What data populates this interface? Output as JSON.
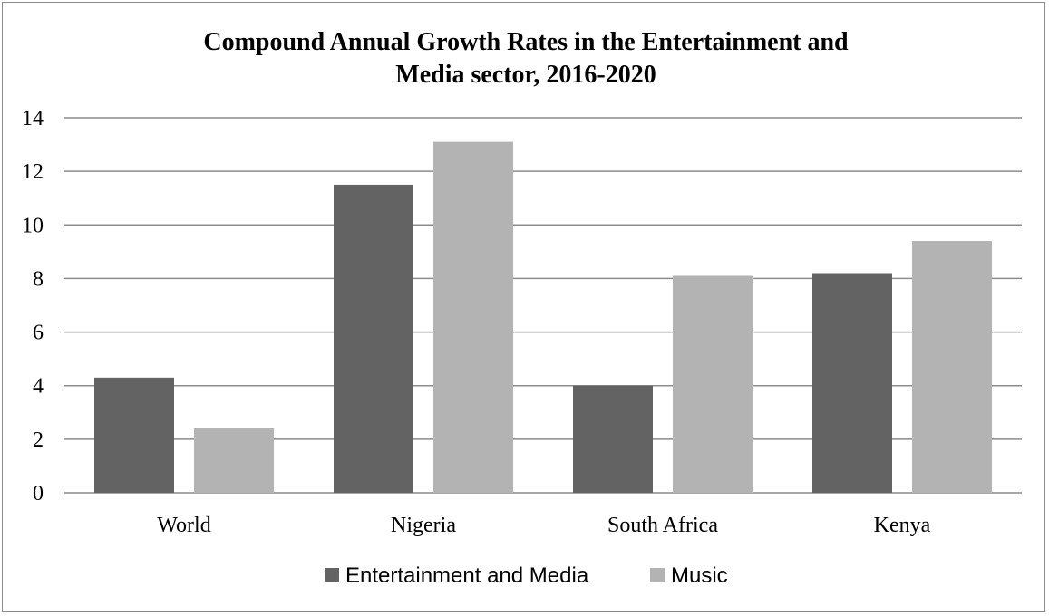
{
  "chart_data": {
    "type": "bar",
    "title_lines": [
      "Compound Annual Growth Rates in the Entertainment and",
      "Media sector, 2016-2020"
    ],
    "categories": [
      "World",
      "Nigeria",
      "South Africa",
      "Kenya"
    ],
    "series": [
      {
        "name": "Entertainment and Media",
        "values": [
          4.3,
          11.5,
          4.0,
          8.2
        ],
        "color": "#636363"
      },
      {
        "name": "Music",
        "values": [
          2.4,
          13.1,
          8.1,
          9.4
        ],
        "color": "#b3b3b3"
      }
    ],
    "ylim": [
      0,
      14
    ],
    "yticks": [
      "0",
      "2",
      "4",
      "6",
      "8",
      "10",
      "12",
      "14"
    ],
    "grid": true,
    "legend_position": "bottom",
    "gridline_color": "#8c8c8c"
  }
}
